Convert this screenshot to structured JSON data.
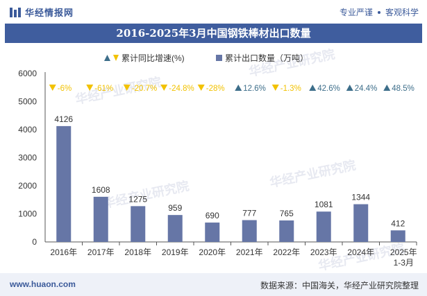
{
  "header": {
    "brand": "华经情报网",
    "slogan_left": "专业严谨",
    "slogan_right": "客观科学",
    "title": "2016-2025年3月中国钢铁棒材出口数量"
  },
  "footer": {
    "url": "www.huaon.com",
    "source": "数据来源：中国海关，华经产业研究院整理"
  },
  "watermark": "华经产业研究院",
  "colors": {
    "bar": "#6676a6",
    "up": "#3d6e8a",
    "down": "#f2c200",
    "brand": "#3f5d9e"
  },
  "chart_data": {
    "type": "bar",
    "title": "2016-2025年3月中国钢铁棒材出口数量",
    "categories": [
      "2016年",
      "2017年",
      "2018年",
      "2019年",
      "2020年",
      "2021年",
      "2022年",
      "2023年",
      "2024年",
      "2025年\n1-3月"
    ],
    "series": [
      {
        "name": "累计出口数量（万吨）",
        "values": [
          4126,
          1608,
          1275,
          959,
          690,
          777,
          765,
          1081,
          1344,
          412
        ]
      },
      {
        "name": "累计同比增速(%)",
        "values": [
          -6,
          -61,
          -20.7,
          -24.8,
          -28,
          12.6,
          -1.3,
          42.6,
          24.4,
          48.5
        ],
        "labels": [
          "-6%",
          "-61%",
          "-20.7%",
          "-24.8%",
          "-28%",
          "12.6%",
          "-1.3%",
          "42.6%",
          "24.4%",
          "48.5%"
        ]
      }
    ],
    "legend": [
      "累计同比增速(%)",
      "累计出口数量（万吨）"
    ],
    "yticks": [
      0,
      1000,
      2000,
      3000,
      4000,
      5000,
      6000
    ],
    "ylim": [
      0,
      6000
    ],
    "legend_position": "top-center"
  }
}
